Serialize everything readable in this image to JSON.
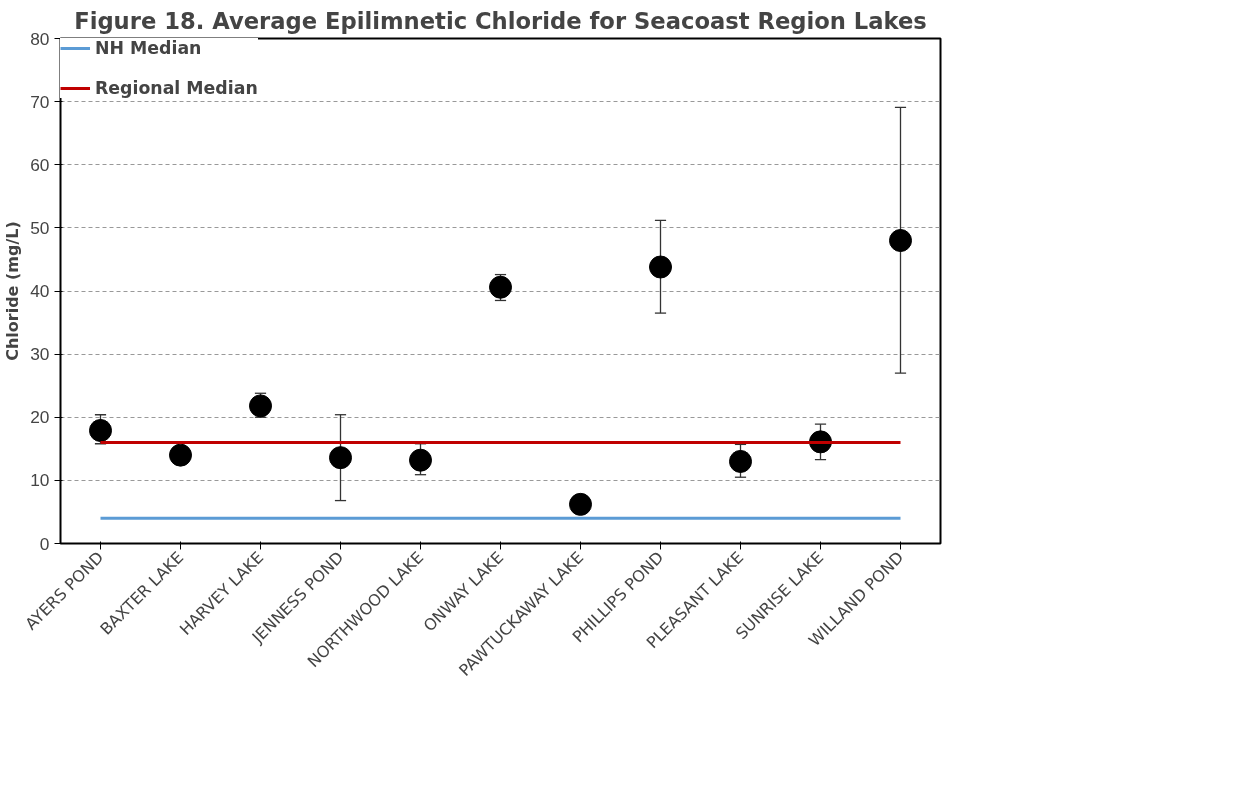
{
  "chart_data": {
    "type": "scatter",
    "title": "Figure 18. Average Epilimnetic Chloride for Seacoast Region Lakes",
    "ylabel": "Chloride (mg/L)",
    "categories": [
      "AYERS POND",
      "BAXTER LAKE",
      "HARVEY LAKE",
      "JENNESS POND",
      "NORTHWOOD LAKE",
      "ONWAY LAKE",
      "PAWTUCKAWAY LAKE",
      "PHILLIPS POND",
      "PLEASANT LAKE",
      "SUNRISE LAKE",
      "WILLAND POND"
    ],
    "series": [
      {
        "color": "#000000",
        "marker": "circle",
        "values": [
          17.9,
          14,
          21.8,
          13.6,
          13.2,
          40.6,
          6.2,
          43.8,
          13,
          16.1,
          48
        ],
        "errors": [
          [
            15.8,
            20.4
          ],
          null,
          [
            20,
            23.8
          ],
          [
            6.8,
            20.4
          ],
          [
            10.9,
            15.8
          ],
          [
            38.5,
            42.6
          ],
          null,
          [
            36.5,
            51.2
          ],
          [
            10.5,
            15.7
          ],
          [
            13.3,
            18.9
          ],
          [
            27,
            69.1
          ]
        ]
      },
      {
        "type": "line",
        "name": "NH Median",
        "color": "#5b9bd5",
        "marker": "none",
        "values": [
          4,
          4,
          4,
          4,
          4,
          4,
          4,
          4,
          4,
          4,
          4
        ]
      },
      {
        "type": "line",
        "name": "Regional Median",
        "color": "#c00000",
        "marker": "none",
        "values": [
          16,
          16,
          16,
          16,
          16,
          16,
          16,
          16,
          16,
          16,
          16
        ]
      }
    ],
    "ylim": [
      0,
      80
    ],
    "yticks": [
      0,
      10,
      20,
      30,
      40,
      50,
      60,
      70,
      80
    ],
    "grid": "y",
    "legend": "top left"
  }
}
